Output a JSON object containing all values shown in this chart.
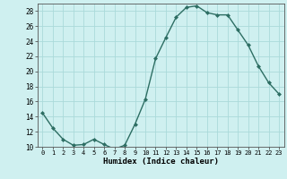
{
  "x": [
    0,
    1,
    2,
    3,
    4,
    5,
    6,
    7,
    8,
    9,
    10,
    11,
    12,
    13,
    14,
    15,
    16,
    17,
    18,
    19,
    20,
    21,
    22,
    23
  ],
  "y": [
    14.5,
    12.5,
    11.0,
    10.2,
    10.3,
    11.0,
    10.3,
    9.7,
    10.2,
    13.0,
    16.3,
    21.7,
    24.5,
    27.2,
    28.5,
    28.7,
    27.8,
    27.5,
    27.5,
    25.5,
    23.5,
    20.7,
    18.5,
    17.0
  ],
  "line_color": "#2d6e63",
  "marker": "D",
  "marker_size": 2,
  "bg_color": "#cff0f0",
  "grid_color": "#aadada",
  "xlabel": "Humidex (Indice chaleur)",
  "ylim": [
    10,
    29
  ],
  "xlim": [
    -0.5,
    23.5
  ],
  "yticks": [
    10,
    12,
    14,
    16,
    18,
    20,
    22,
    24,
    26,
    28
  ],
  "xticks": [
    0,
    1,
    2,
    3,
    4,
    5,
    6,
    7,
    8,
    9,
    10,
    11,
    12,
    13,
    14,
    15,
    16,
    17,
    18,
    19,
    20,
    21,
    22,
    23
  ],
  "line_width": 1.0
}
